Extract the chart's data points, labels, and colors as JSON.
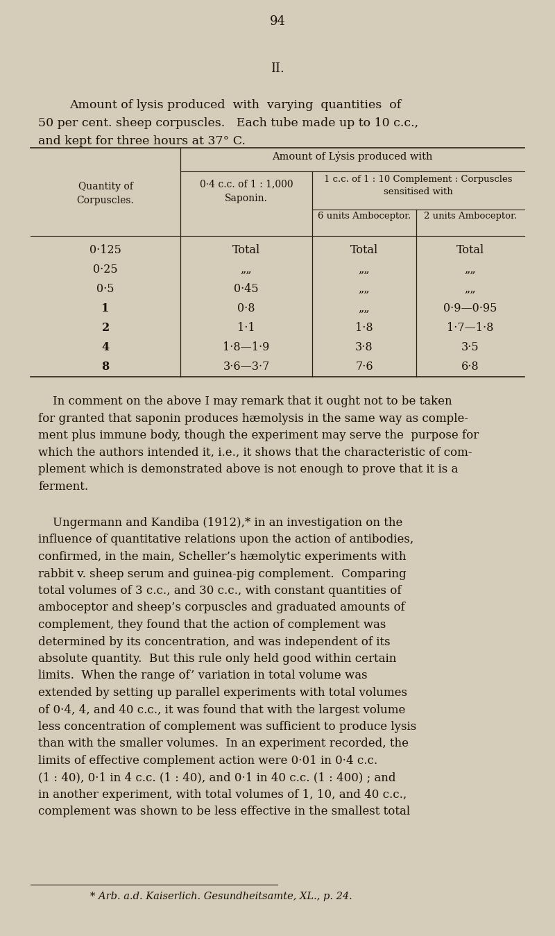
{
  "bg_color": "#d6ccba",
  "text_color": "#1a1208",
  "page_number": "94",
  "section_heading": "II.",
  "intro_line1": "Amount of lysis produced  with  varying  quantities  of",
  "intro_line2": "50 per cent. sheep corpuscles.   Each tube made up to 10 c.c.,",
  "intro_line3": "and kept for three hours at 37° C.",
  "table_super": "Amount of Lẏsis produced with",
  "table_col0_h1": "Quantity of",
  "table_col0_h2": "Corpuscles.",
  "table_col1_h1": "0·4 c.c. of 1 : 1,000",
  "table_col1_h2": "Saponin.",
  "table_sub_h1": "1 c.c. of 1 : 10 Complement : Corpuscles",
  "table_sub_h2": "sensitised with",
  "table_col2_h": "6 units Amboceptor.",
  "table_col3_h": "2 units Amboceptor.",
  "table_rows": [
    [
      "0·125",
      "Total",
      "Total",
      "Total"
    ],
    [
      "0·25",
      "„„",
      "„„",
      "„„"
    ],
    [
      "0·5",
      "0·45",
      "„„",
      "„„"
    ],
    [
      "1",
      "0·8",
      "„„",
      "0·9—0·95"
    ],
    [
      "2",
      "1·1",
      "1·8",
      "1·7—1·8"
    ],
    [
      "4",
      "1·8—1·9",
      "3·8",
      "3·5"
    ],
    [
      "8",
      "3·6—3·7",
      "7·6",
      "6·8"
    ]
  ],
  "para1_lines": [
    "    In comment on the above I may remark that it ought not to be taken",
    "for granted that saponin produces hæmolysis in the same way as comple-",
    "ment plus immune body, though the experiment may serve the  purpose for",
    "which the authors intended it, i.e., it shows that the characteristic of com-",
    "plement which is demonstrated above is not enough to prove that it is a",
    "ferment."
  ],
  "para2_lines": [
    "    Ungermann and Kandiba (1912),* in an investigation on the",
    "influence of quantitative relations upon the action of antibodies,",
    "confirmed, in the main, Scheller’s hæmolytic experiments with",
    "rabbit v. sheep serum and guinea-pig complement.  Comparing",
    "total volumes of 3 c.c., and 30 c.c., with constant quantities of",
    "amboceptor and sheep’s corpuscles and graduated amounts of",
    "complement, they found that the action of complement was",
    "determined by its concentration, and was independent of its",
    "absolute quantity.  But this rule only held good within certain",
    "limits.  When the range of’ variation in total volume was",
    "extended by setting up parallel experiments with total volumes",
    "of 0·4, 4, and 40 c.c., it was found that with the largest volume",
    "less concentration of complement was sufficient to produce lysis",
    "than with the smaller volumes.  In an experiment recorded, the",
    "limits of effective complement action were 0·01 in 0·4 c.c.",
    "(1 : 40), 0·1 in 4 c.c. (1 : 40), and 0·1 in 40 c.c. (1 : 400) ; and",
    "in another experiment, with total volumes of 1, 10, and 40 c.c.,",
    "complement was shown to be less effective in the smallest total"
  ],
  "footnote": "* Arb. a.d. Kaiserlich. Gesundheitsamte, XL., p. 24."
}
